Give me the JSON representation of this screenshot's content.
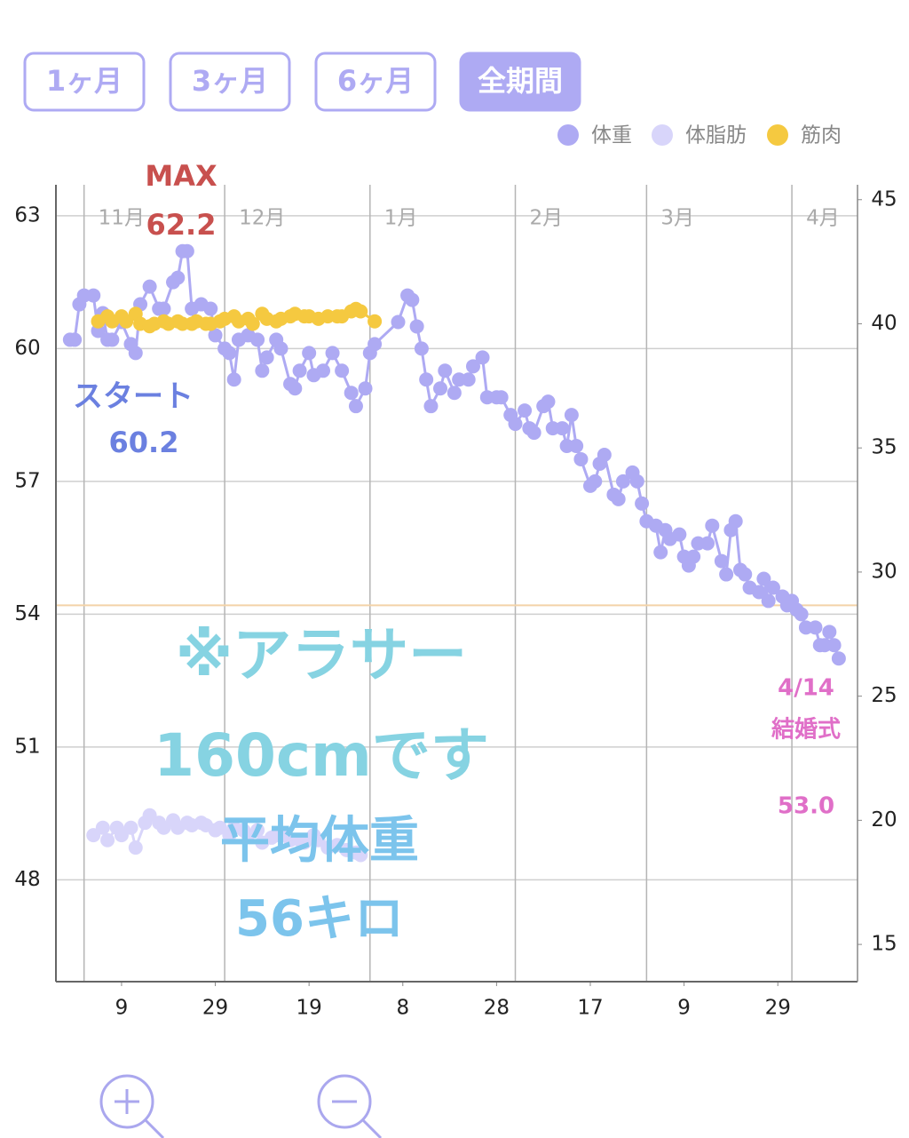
{
  "chart_data": {
    "type": "line",
    "range_buttons": [
      "1ヶ月",
      "3ヶ月",
      "6ヶ月",
      "全期間"
    ],
    "active_button": 3,
    "xlim": [
      "10-26",
      "04-15"
    ],
    "xticks": [
      {
        "value": "11-09",
        "label": "9"
      },
      {
        "value": "11-29",
        "label": "29"
      },
      {
        "value": "12-19",
        "label": "19"
      },
      {
        "value": "01-08",
        "label": "8"
      },
      {
        "value": "01-28",
        "label": "28"
      },
      {
        "value": "02-17",
        "label": "17"
      },
      {
        "value": "03-09",
        "label": "9"
      },
      {
        "value": "03-29",
        "label": "29"
      }
    ],
    "month_ticks": [
      {
        "value": "11-01",
        "label": "11月"
      },
      {
        "value": "12-01",
        "label": "12月"
      },
      {
        "value": "01-01",
        "label": "1月"
      },
      {
        "value": "02-01",
        "label": "2月"
      },
      {
        "value": "03-01",
        "label": "3月"
      },
      {
        "value": "04-01",
        "label": "4月"
      }
    ],
    "ylim": [
      45.7,
      63.7
    ],
    "yticks": [
      48,
      51,
      54,
      57,
      60,
      63
    ],
    "y2lim": [
      13.5,
      45.6
    ],
    "y2ticks": [
      15,
      20,
      25,
      30,
      35,
      40,
      45
    ],
    "grid": true,
    "reference_line": 54.2,
    "reference_color": "#f3d3a8",
    "series": [
      {
        "name": "体重",
        "color": "#aeaaf3",
        "x": [
          "10-29",
          "10-30",
          "10-31",
          "11-01",
          "11-03",
          "11-04",
          "11-05",
          "11-06",
          "11-07",
          "11-09",
          "11-11",
          "11-12",
          "11-13",
          "11-15",
          "11-17",
          "11-18",
          "11-20",
          "11-21",
          "11-22",
          "11-23",
          "11-24",
          "11-26",
          "11-28",
          "11-29",
          "12-01",
          "12-02",
          "12-03",
          "12-04",
          "12-06",
          "12-08",
          "12-09",
          "12-10",
          "12-12",
          "12-13",
          "12-15",
          "12-16",
          "12-17",
          "12-19",
          "12-20",
          "12-22",
          "12-24",
          "12-26",
          "12-28",
          "12-29",
          "12-31",
          "01-01",
          "01-02",
          "01-07",
          "01-09",
          "01-10",
          "01-11",
          "01-12",
          "01-13",
          "01-14",
          "01-16",
          "01-17",
          "01-19",
          "01-20",
          "01-22",
          "01-23",
          "01-25",
          "01-26",
          "01-28",
          "01-29",
          "01-31",
          "02-01",
          "02-03",
          "02-04",
          "02-05",
          "02-07",
          "02-08",
          "02-09",
          "02-11",
          "02-12",
          "02-13",
          "02-14",
          "02-15",
          "02-17",
          "02-18",
          "02-19",
          "02-20",
          "02-22",
          "02-23",
          "02-24",
          "02-26",
          "02-27",
          "02-28",
          "03-01",
          "03-03",
          "03-04",
          "03-05",
          "03-06",
          "03-08",
          "03-09",
          "03-10",
          "03-11",
          "03-12",
          "03-14",
          "03-15",
          "03-17",
          "03-18",
          "03-19",
          "03-20",
          "03-21",
          "03-22",
          "03-23",
          "03-25",
          "03-26",
          "03-27",
          "03-28",
          "03-30",
          "03-31",
          "04-01",
          "04-02",
          "04-03",
          "04-04",
          "04-06",
          "04-07",
          "04-08",
          "04-09",
          "04-10",
          "04-11"
        ],
        "values": [
          60.2,
          60.2,
          61.0,
          61.2,
          61.2,
          60.4,
          60.8,
          60.2,
          60.2,
          60.6,
          60.1,
          59.9,
          61.0,
          61.4,
          60.9,
          60.9,
          61.5,
          61.6,
          62.2,
          62.2,
          60.9,
          61.0,
          60.9,
          60.3,
          60.0,
          59.9,
          59.3,
          60.2,
          60.3,
          60.2,
          59.5,
          59.8,
          60.2,
          60.0,
          59.2,
          59.1,
          59.5,
          59.9,
          59.4,
          59.5,
          59.9,
          59.5,
          59.0,
          58.7,
          59.1,
          59.9,
          60.1,
          60.6,
          61.2,
          61.1,
          60.5,
          60.0,
          59.3,
          58.7,
          59.1,
          59.5,
          59.0,
          59.3,
          59.3,
          59.6,
          59.8,
          58.9,
          58.9,
          58.9,
          58.5,
          58.3,
          58.6,
          58.2,
          58.1,
          58.7,
          58.8,
          58.2,
          58.2,
          57.8,
          58.5,
          57.8,
          57.5,
          56.9,
          57.0,
          57.4,
          57.6,
          56.7,
          56.6,
          57.0,
          57.2,
          57.0,
          56.5,
          56.1,
          56.0,
          55.4,
          55.9,
          55.7,
          55.8,
          55.3,
          55.1,
          55.3,
          55.6,
          55.6,
          56.0,
          55.2,
          54.9,
          55.9,
          56.1,
          55.0,
          54.9,
          54.6,
          54.5,
          54.8,
          54.3,
          54.6,
          54.4,
          54.2,
          54.3,
          54.1,
          54.0,
          53.7,
          53.7,
          53.3,
          53.3,
          53.6,
          53.3,
          53.0
        ]
      },
      {
        "name": "体脂肪",
        "color": "#d8d5fa",
        "axis": "y2",
        "x": [
          "11-03",
          "11-05",
          "11-06",
          "11-08",
          "11-09",
          "11-11",
          "11-12",
          "11-14",
          "11-15",
          "11-17",
          "11-18",
          "11-20",
          "11-21",
          "11-23",
          "11-24",
          "11-26",
          "11-27",
          "11-29",
          "11-30",
          "12-02",
          "12-03",
          "12-05",
          "12-06",
          "12-08",
          "12-09",
          "12-11",
          "12-12",
          "12-14",
          "12-15",
          "12-17",
          "12-18",
          "12-20",
          "12-21",
          "12-23",
          "12-25",
          "12-27",
          "12-29",
          "12-30"
        ],
        "values": [
          19.4,
          19.7,
          19.2,
          19.7,
          19.4,
          19.7,
          18.9,
          19.9,
          20.2,
          19.9,
          19.7,
          20.0,
          19.7,
          19.9,
          19.8,
          19.9,
          19.8,
          19.6,
          19.7,
          19.4,
          19.7,
          19.6,
          19.4,
          19.6,
          19.1,
          19.3,
          19.4,
          19.4,
          19.2,
          19.2,
          19.1,
          19.4,
          19.2,
          18.9,
          19.0,
          18.8,
          18.7,
          18.6
        ]
      },
      {
        "name": "筋肉",
        "color": "#f5c940",
        "axis": "y2",
        "x": [
          "11-04",
          "11-06",
          "11-07",
          "11-09",
          "11-10",
          "11-12",
          "11-13",
          "11-15",
          "11-16",
          "11-18",
          "11-19",
          "11-21",
          "11-22",
          "11-24",
          "11-25",
          "11-27",
          "11-28",
          "11-30",
          "12-01",
          "12-03",
          "12-04",
          "12-06",
          "12-07",
          "12-09",
          "12-10",
          "12-12",
          "12-13",
          "12-15",
          "12-16",
          "12-18",
          "12-19",
          "12-21",
          "12-23",
          "12-25",
          "12-26",
          "12-28",
          "12-29",
          "12-30",
          "01-02"
        ],
        "values": [
          40.1,
          40.3,
          40.1,
          40.3,
          40.1,
          40.4,
          40.0,
          39.9,
          40.0,
          40.1,
          40.0,
          40.1,
          40.0,
          40.0,
          40.1,
          40.0,
          40.0,
          40.1,
          40.2,
          40.3,
          40.1,
          40.2,
          40.0,
          40.4,
          40.2,
          40.1,
          40.2,
          40.3,
          40.4,
          40.3,
          40.3,
          40.2,
          40.3,
          40.3,
          40.3,
          40.5,
          40.6,
          40.5,
          40.1
        ]
      }
    ],
    "annotations": [
      {
        "text": "MAX",
        "color": "#c8504e"
      },
      {
        "text": "62.2",
        "color": "#c8504e"
      },
      {
        "text": "スタート",
        "color": "#6b80e0"
      },
      {
        "text": "60.2",
        "color": "#6b80e0"
      },
      {
        "text": "※アラサー",
        "color": "#86d3e2"
      },
      {
        "text": "160cmです",
        "color": "#86d3e2"
      },
      {
        "text": "平均体重",
        "color": "#7cc4ec"
      },
      {
        "text": "56キロ",
        "color": "#7cc4ec"
      },
      {
        "text": "4/14",
        "color": "#e06fc8"
      },
      {
        "text": "結婚式",
        "color": "#e06fc8"
      },
      {
        "text": "53.0",
        "color": "#e06fc8"
      }
    ]
  }
}
